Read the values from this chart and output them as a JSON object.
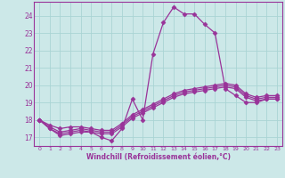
{
  "xlabel": "Windchill (Refroidissement éolien,°C)",
  "background_color": "#cce8e8",
  "grid_color": "#aad4d4",
  "line_color": "#993399",
  "xlim": [
    -0.5,
    23.5
  ],
  "ylim": [
    16.5,
    24.8
  ],
  "yticks": [
    17,
    18,
    19,
    20,
    21,
    22,
    23,
    24
  ],
  "xticks": [
    0,
    1,
    2,
    3,
    4,
    5,
    6,
    7,
    8,
    9,
    10,
    11,
    12,
    13,
    14,
    15,
    16,
    17,
    18,
    19,
    20,
    21,
    22,
    23
  ],
  "series": [
    [
      18.0,
      17.5,
      17.1,
      17.2,
      17.3,
      17.3,
      17.0,
      16.8,
      17.5,
      19.2,
      18.0,
      21.8,
      23.6,
      24.5,
      24.1,
      24.1,
      23.5,
      23.0,
      19.8,
      19.4,
      19.0,
      19.0,
      19.2,
      19.2
    ],
    [
      18.0,
      17.5,
      17.2,
      17.3,
      17.4,
      17.3,
      17.2,
      17.2,
      17.6,
      18.1,
      18.4,
      18.7,
      19.0,
      19.3,
      19.5,
      19.6,
      19.7,
      19.8,
      19.9,
      19.8,
      19.3,
      19.1,
      19.2,
      19.2
    ],
    [
      18.0,
      17.6,
      17.3,
      17.4,
      17.5,
      17.4,
      17.3,
      17.3,
      17.7,
      18.2,
      18.5,
      18.8,
      19.1,
      19.4,
      19.6,
      19.7,
      19.8,
      19.9,
      20.0,
      19.9,
      19.4,
      19.2,
      19.3,
      19.3
    ],
    [
      18.0,
      17.7,
      17.5,
      17.6,
      17.6,
      17.5,
      17.4,
      17.4,
      17.8,
      18.3,
      18.6,
      18.9,
      19.2,
      19.5,
      19.7,
      19.8,
      19.9,
      20.0,
      20.1,
      20.0,
      19.5,
      19.3,
      19.4,
      19.4
    ]
  ],
  "marker": "D",
  "markersize": 2.5,
  "linewidth": 0.9,
  "spine_color": "#993399"
}
